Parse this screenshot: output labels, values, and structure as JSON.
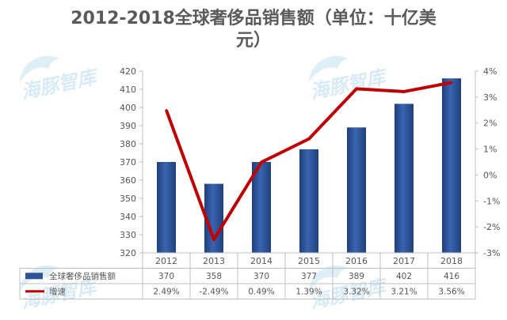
{
  "watermark": {
    "text": "海豚智库"
  },
  "chart_data": {
    "type": "bar",
    "title": "2012-2018全球奢侈品销售额（单位：十亿美元）",
    "title_lines": [
      "2012-2018全球奢侈品销售额（单位：十亿美",
      "元）"
    ],
    "categories": [
      "2012",
      "2013",
      "2014",
      "2015",
      "2016",
      "2017",
      "2018"
    ],
    "series": [
      {
        "name": "全球奢侈品销售额",
        "type": "bar",
        "axis": "left",
        "color": "#2f5597",
        "values": [
          370,
          358,
          370,
          377,
          389,
          402,
          416
        ],
        "table_values": [
          "370",
          "358",
          "370",
          "377",
          "389",
          "402",
          "416"
        ]
      },
      {
        "name": "增速",
        "type": "line",
        "axis": "right",
        "color": "#c00000",
        "values": [
          2.49,
          -2.49,
          0.49,
          1.39,
          3.32,
          3.21,
          3.56
        ],
        "table_values": [
          "2.49%",
          "-2.49%",
          "0.49%",
          "1.39%",
          "3.32%",
          "3.21%",
          "3.56%"
        ]
      }
    ],
    "left_axis": {
      "min": 320,
      "max": 420,
      "ticks": [
        320,
        330,
        340,
        350,
        360,
        370,
        380,
        390,
        400,
        410,
        420
      ],
      "tick_labels": [
        "320",
        "330",
        "340",
        "350",
        "360",
        "370",
        "380",
        "390",
        "400",
        "410",
        "420"
      ]
    },
    "right_axis": {
      "min": -3,
      "max": 4,
      "ticks": [
        -3,
        -2,
        -1,
        0,
        1,
        2,
        3,
        4
      ],
      "tick_labels": [
        "-3%",
        "-2%",
        "-1%",
        "0%",
        "1%",
        "2%",
        "3%",
        "4%"
      ]
    },
    "grid": false,
    "legend": "data-table-bottom"
  }
}
